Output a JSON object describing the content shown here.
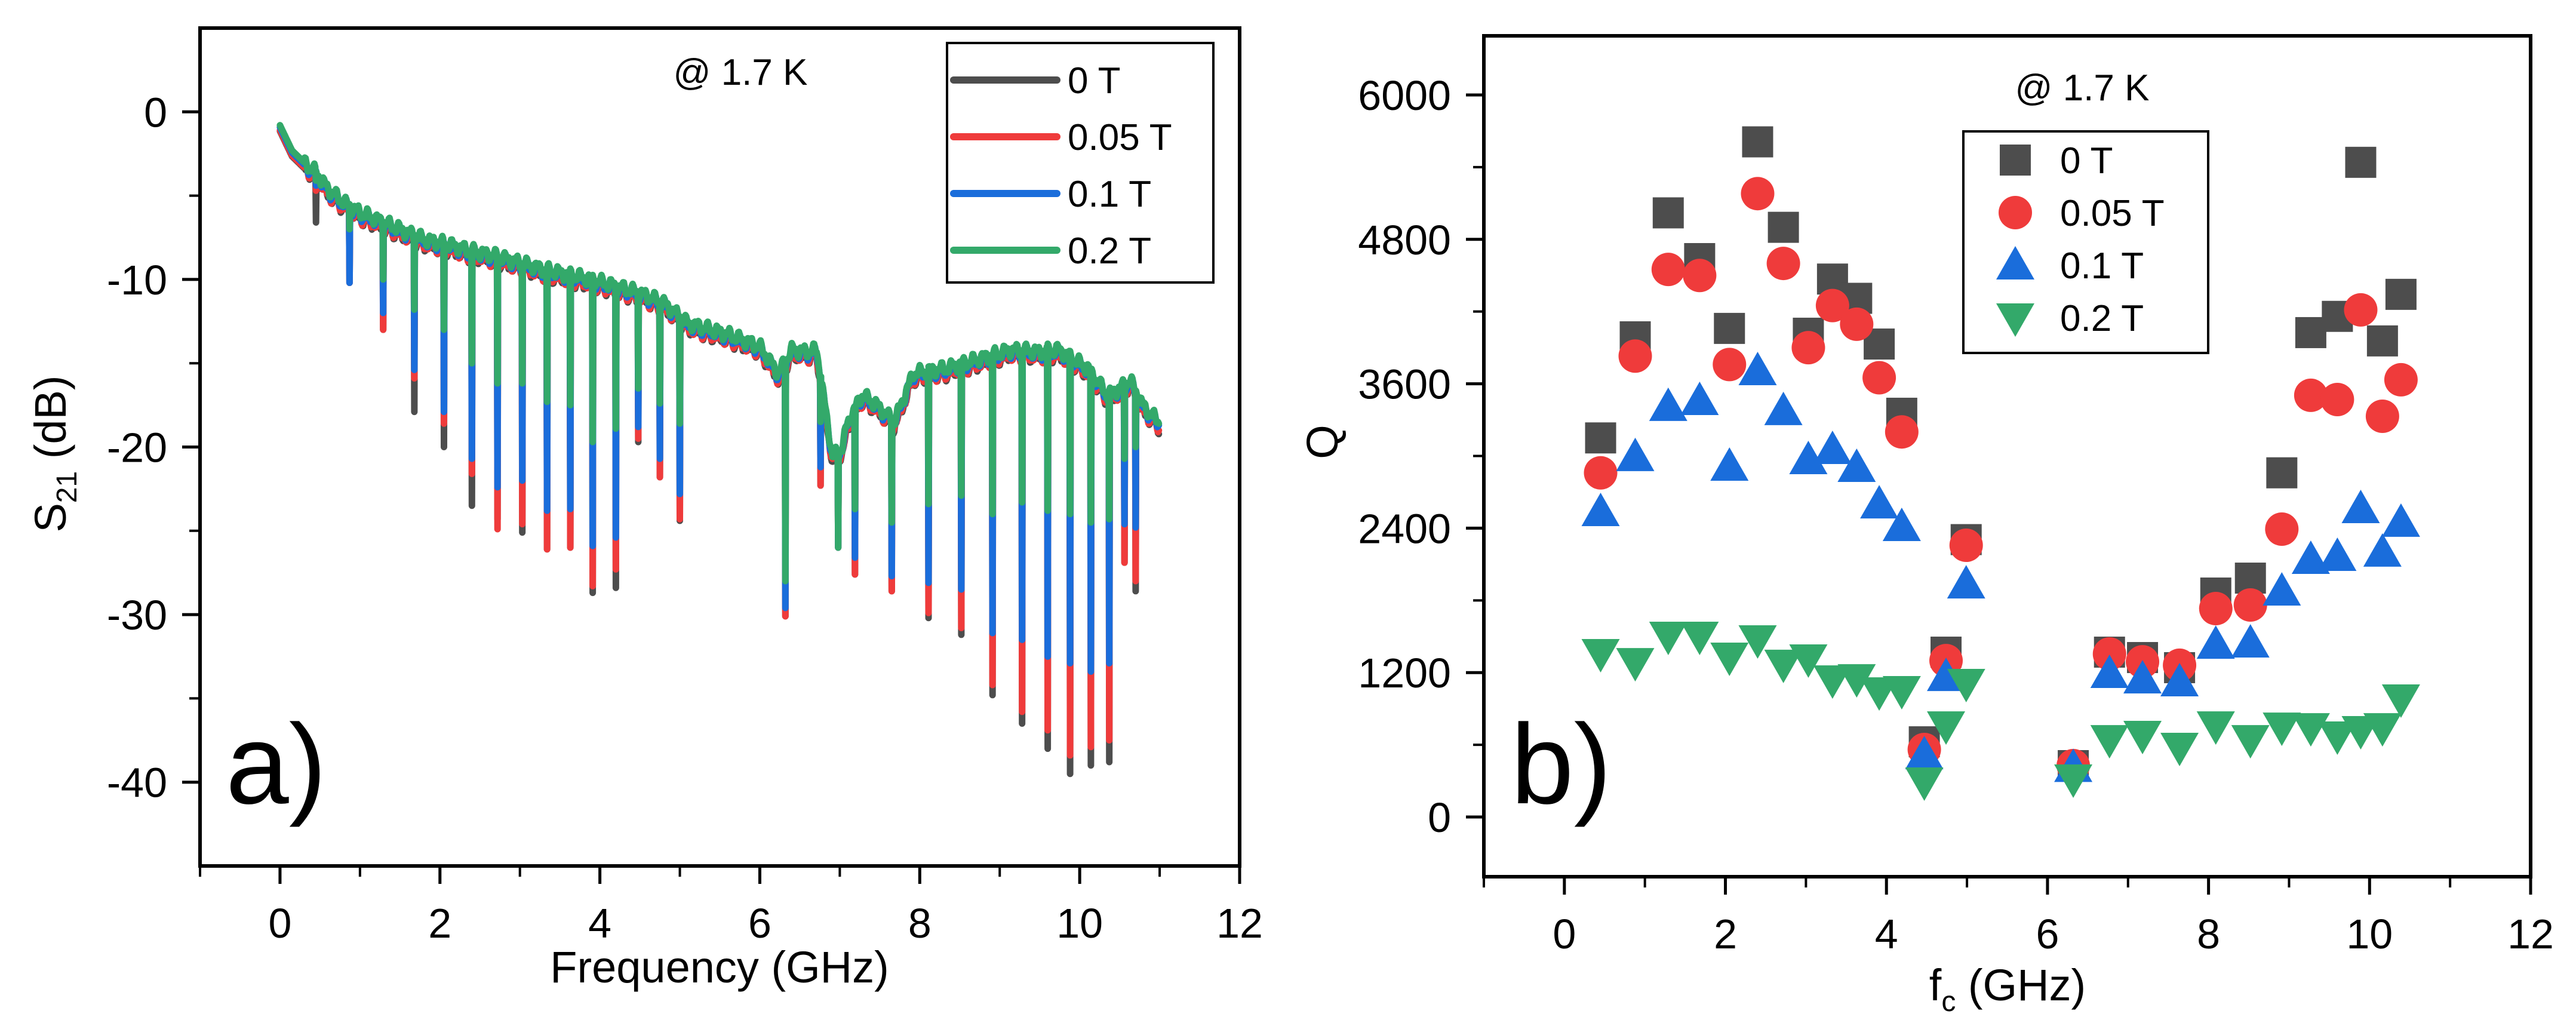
{
  "figure": {
    "panels": [
      "a)",
      "b)"
    ]
  },
  "chart_data": [
    {
      "id": "panel-a",
      "type": "line",
      "panel_label": "a)",
      "title": "",
      "annotation": "@ 1.7 K",
      "xlabel": "Frequency (GHz)",
      "ylabel_main": "S",
      "ylabel_sub": "21",
      "ylabel_unit": " (dB)",
      "xlim": [
        -1,
        12
      ],
      "ylim": [
        -45,
        5
      ],
      "xticks": [
        0,
        2,
        4,
        6,
        8,
        10,
        12
      ],
      "xtick_labels": [
        "0",
        "2",
        "4",
        "6",
        "8",
        "10",
        "12"
      ],
      "xminor": [
        -1,
        1,
        3,
        5,
        7,
        9,
        11
      ],
      "yticks": [
        0,
        -10,
        -20,
        -30,
        -40
      ],
      "ytick_labels": [
        "0",
        "-10",
        "-20",
        "-30",
        "-40"
      ],
      "yminor": [
        -5,
        -15,
        -25,
        -35
      ],
      "grid": false,
      "legend_position": "top-right",
      "series": [
        {
          "name": "0 T",
          "color": "#4d4d4d"
        },
        {
          "name": "0.05 T",
          "color": "#ef3b3b"
        },
        {
          "name": "0.1 T",
          "color": "#1a6ddb"
        },
        {
          "name": "0.2 T",
          "color": "#33a96a"
        }
      ],
      "baseline": {
        "f": [
          0.0,
          0.05,
          0.15,
          0.3,
          0.45,
          0.6,
          0.8,
          1.0,
          1.2,
          1.5,
          1.8,
          2.1,
          2.4,
          2.7,
          3.0,
          3.3,
          3.6,
          3.9,
          4.2,
          4.5,
          4.8,
          5.09,
          5.62,
          6.0,
          6.23,
          6.4,
          6.6,
          6.71,
          6.91,
          7.03,
          7.1,
          7.28,
          7.44,
          7.68,
          7.92,
          8.33,
          8.7,
          9.14,
          9.5,
          9.74,
          10.1,
          10.35,
          10.5,
          10.63,
          10.8,
          10.99
        ],
        "db": [
          -0.8,
          -1.3,
          -2.3,
          -3.0,
          -3.6,
          -4.6,
          -5.4,
          -6.0,
          -6.4,
          -7.0,
          -7.6,
          -7.9,
          -8.3,
          -8.6,
          -9.0,
          -9.4,
          -9.7,
          -10.0,
          -10.4,
          -10.8,
          -11.4,
          -12.6,
          -13.3,
          -14.0,
          -15.6,
          -14.2,
          -14.3,
          -14.2,
          -20.6,
          -20.0,
          -18.5,
          -16.9,
          -17.4,
          -18.5,
          -15.6,
          -15.3,
          -14.8,
          -14.2,
          -14.3,
          -14.2,
          -15.3,
          -16.9,
          -16.5,
          -16.0,
          -17.6,
          -18.5
        ]
      },
      "dips_note": "dip minima in dB for [0 T, 0.05 T, 0.1 T, 0.2 T]",
      "dips": [
        {
          "f": 0.45,
          "depth": [
            -6.6,
            -4.7,
            -4.4,
            -4.1
          ]
        },
        {
          "f": 0.87,
          "depth": [
            -10.2,
            -10.2,
            -10.2,
            -7.0
          ]
        },
        {
          "f": 1.29,
          "depth": [
            -13.0,
            -13.0,
            -12.0,
            -10.0
          ]
        },
        {
          "f": 1.68,
          "depth": [
            -17.9,
            -15.9,
            -15.4,
            -11.8
          ]
        },
        {
          "f": 2.05,
          "depth": [
            -20.0,
            -18.6,
            -17.9,
            -13.0
          ]
        },
        {
          "f": 2.4,
          "depth": [
            -23.5,
            -21.6,
            -20.7,
            -15.0
          ]
        },
        {
          "f": 2.72,
          "depth": [
            -24.3,
            -24.9,
            -22.4,
            -16.2
          ]
        },
        {
          "f": 3.03,
          "depth": [
            -25.1,
            -24.6,
            -22.0,
            -16.2
          ]
        },
        {
          "f": 3.34,
          "depth": [
            -26.1,
            -26.1,
            -23.8,
            -17.3
          ]
        },
        {
          "f": 3.63,
          "depth": [
            -26.0,
            -26.0,
            -23.7,
            -17.5
          ]
        },
        {
          "f": 3.91,
          "depth": [
            -28.7,
            -28.3,
            -25.9,
            -19.7
          ]
        },
        {
          "f": 4.2,
          "depth": [
            -28.4,
            -27.3,
            -25.4,
            -18.9
          ]
        },
        {
          "f": 4.48,
          "depth": [
            -19.7,
            -19.5,
            -18.8,
            -16.5
          ]
        },
        {
          "f": 4.75,
          "depth": [
            -21.8,
            -21.8,
            -20.7,
            -17.4
          ]
        },
        {
          "f": 5.0,
          "depth": [
            -24.4,
            -24.3,
            -22.8,
            -18.6
          ]
        },
        {
          "f": 6.32,
          "depth": [
            -30.1,
            -30.1,
            -29.6,
            -28.0
          ]
        },
        {
          "f": 6.76,
          "depth": [
            -22.3,
            -22.3,
            -21.2,
            -18.5
          ]
        },
        {
          "f": 6.98,
          "depth": [
            -26.0,
            -26.0,
            -26.0,
            -26.0
          ]
        },
        {
          "f": 7.19,
          "depth": [
            -27.6,
            -27.6,
            -26.6,
            -23.7
          ]
        },
        {
          "f": 7.65,
          "depth": [
            -28.6,
            -28.6,
            -27.7,
            -24.5
          ]
        },
        {
          "f": 8.11,
          "depth": [
            -30.2,
            -29.9,
            -28.1,
            -23.4
          ]
        },
        {
          "f": 8.52,
          "depth": [
            -31.2,
            -30.8,
            -28.5,
            -22.9
          ]
        },
        {
          "f": 8.91,
          "depth": [
            -34.8,
            -34.2,
            -31.1,
            -24.0
          ]
        },
        {
          "f": 9.28,
          "depth": [
            -36.5,
            -35.8,
            -31.5,
            -23.3
          ]
        },
        {
          "f": 9.6,
          "depth": [
            -38.0,
            -36.9,
            -32.5,
            -23.8
          ]
        },
        {
          "f": 9.88,
          "depth": [
            -39.5,
            -38.4,
            -32.9,
            -24.0
          ]
        },
        {
          "f": 10.14,
          "depth": [
            -39.0,
            -37.9,
            -33.4,
            -24.5
          ]
        },
        {
          "f": 10.37,
          "depth": [
            -38.8,
            -37.5,
            -32.9,
            -24.3
          ]
        },
        {
          "f": 10.56,
          "depth": [
            -26.9,
            -26.9,
            -24.6,
            -20.7
          ]
        },
        {
          "f": 10.7,
          "depth": [
            -28.6,
            -28.0,
            -24.8,
            -20.0
          ]
        }
      ]
    },
    {
      "id": "panel-b",
      "type": "scatter",
      "panel_label": "b)",
      "title": "",
      "annotation": "@ 1.7 K",
      "xlabel_main": "f",
      "xlabel_sub": "c",
      "xlabel_unit": " (GHz)",
      "ylabel": "Q",
      "xlim": [
        -1,
        12
      ],
      "ylim": [
        -496,
        6491
      ],
      "xticks": [
        0,
        2,
        4,
        6,
        8,
        10,
        12
      ],
      "xtick_labels": [
        "0",
        "2",
        "4",
        "6",
        "8",
        "10",
        "12"
      ],
      "xminor": [
        -1,
        1,
        3,
        5,
        7,
        9,
        11
      ],
      "yticks": [
        0,
        1200,
        2400,
        3600,
        4800,
        6000
      ],
      "ytick_labels": [
        "0",
        "1200",
        "2400",
        "3600",
        "4800",
        "6000"
      ],
      "yminor": [
        600,
        1800,
        3000,
        4200,
        5400
      ],
      "grid": false,
      "legend_position": "top-center",
      "x": [
        0.45,
        0.88,
        1.29,
        1.68,
        2.05,
        2.4,
        2.72,
        3.03,
        3.33,
        3.63,
        3.91,
        4.19,
        4.47,
        4.74,
        4.99,
        6.32,
        6.77,
        7.18,
        7.64,
        8.09,
        8.52,
        8.91,
        9.27,
        9.6,
        9.89,
        10.16,
        10.39
      ],
      "series": [
        {
          "name": "0 T",
          "marker": "square",
          "color": "#4d4d4d",
          "values": [
            3150,
            3990,
            5020,
            4640,
            4060,
            5610,
            4900,
            4020,
            4470,
            4310,
            3930,
            3355,
            625,
            1370,
            2305,
            427,
            1370,
            1325,
            1241,
            1861,
            1985,
            2860,
            4025,
            4160,
            5440,
            3956,
            4343
          ]
        },
        {
          "name": "0.05 T",
          "marker": "circle",
          "color": "#ef3b3b",
          "values": [
            2860,
            3830,
            4550,
            4500,
            3760,
            5180,
            4600,
            3900,
            4250,
            4095,
            3650,
            3200,
            561,
            1300,
            2258,
            427,
            1355,
            1290,
            1261,
            1732,
            1762,
            2392,
            3504,
            3469,
            4214,
            3330,
            3633
          ]
        },
        {
          "name": "0.1 T",
          "marker": "triangle-up",
          "color": "#1a6ddb",
          "values": [
            2536,
            2993,
            3410,
            3459,
            2913,
            3707,
            3375,
            2968,
            3052,
            2903,
            2600,
            2412,
            516,
            1166,
            1935,
            410,
            1191,
            1146,
            1122,
            1434,
            1444,
            1876,
            2139,
            2164,
            2561,
            2199,
            2447
          ]
        },
        {
          "name": "0.2 T",
          "marker": "triangle-down",
          "color": "#33a96a",
          "values": [
            1360,
            1285,
            1504,
            1504,
            1330,
            1474,
            1271,
            1315,
            1141,
            1151,
            1042,
            1052,
            293,
            759,
            1112,
            318,
            645,
            680,
            581,
            759,
            645,
            749,
            744,
            675,
            720,
            744,
            983
          ]
        }
      ]
    }
  ]
}
